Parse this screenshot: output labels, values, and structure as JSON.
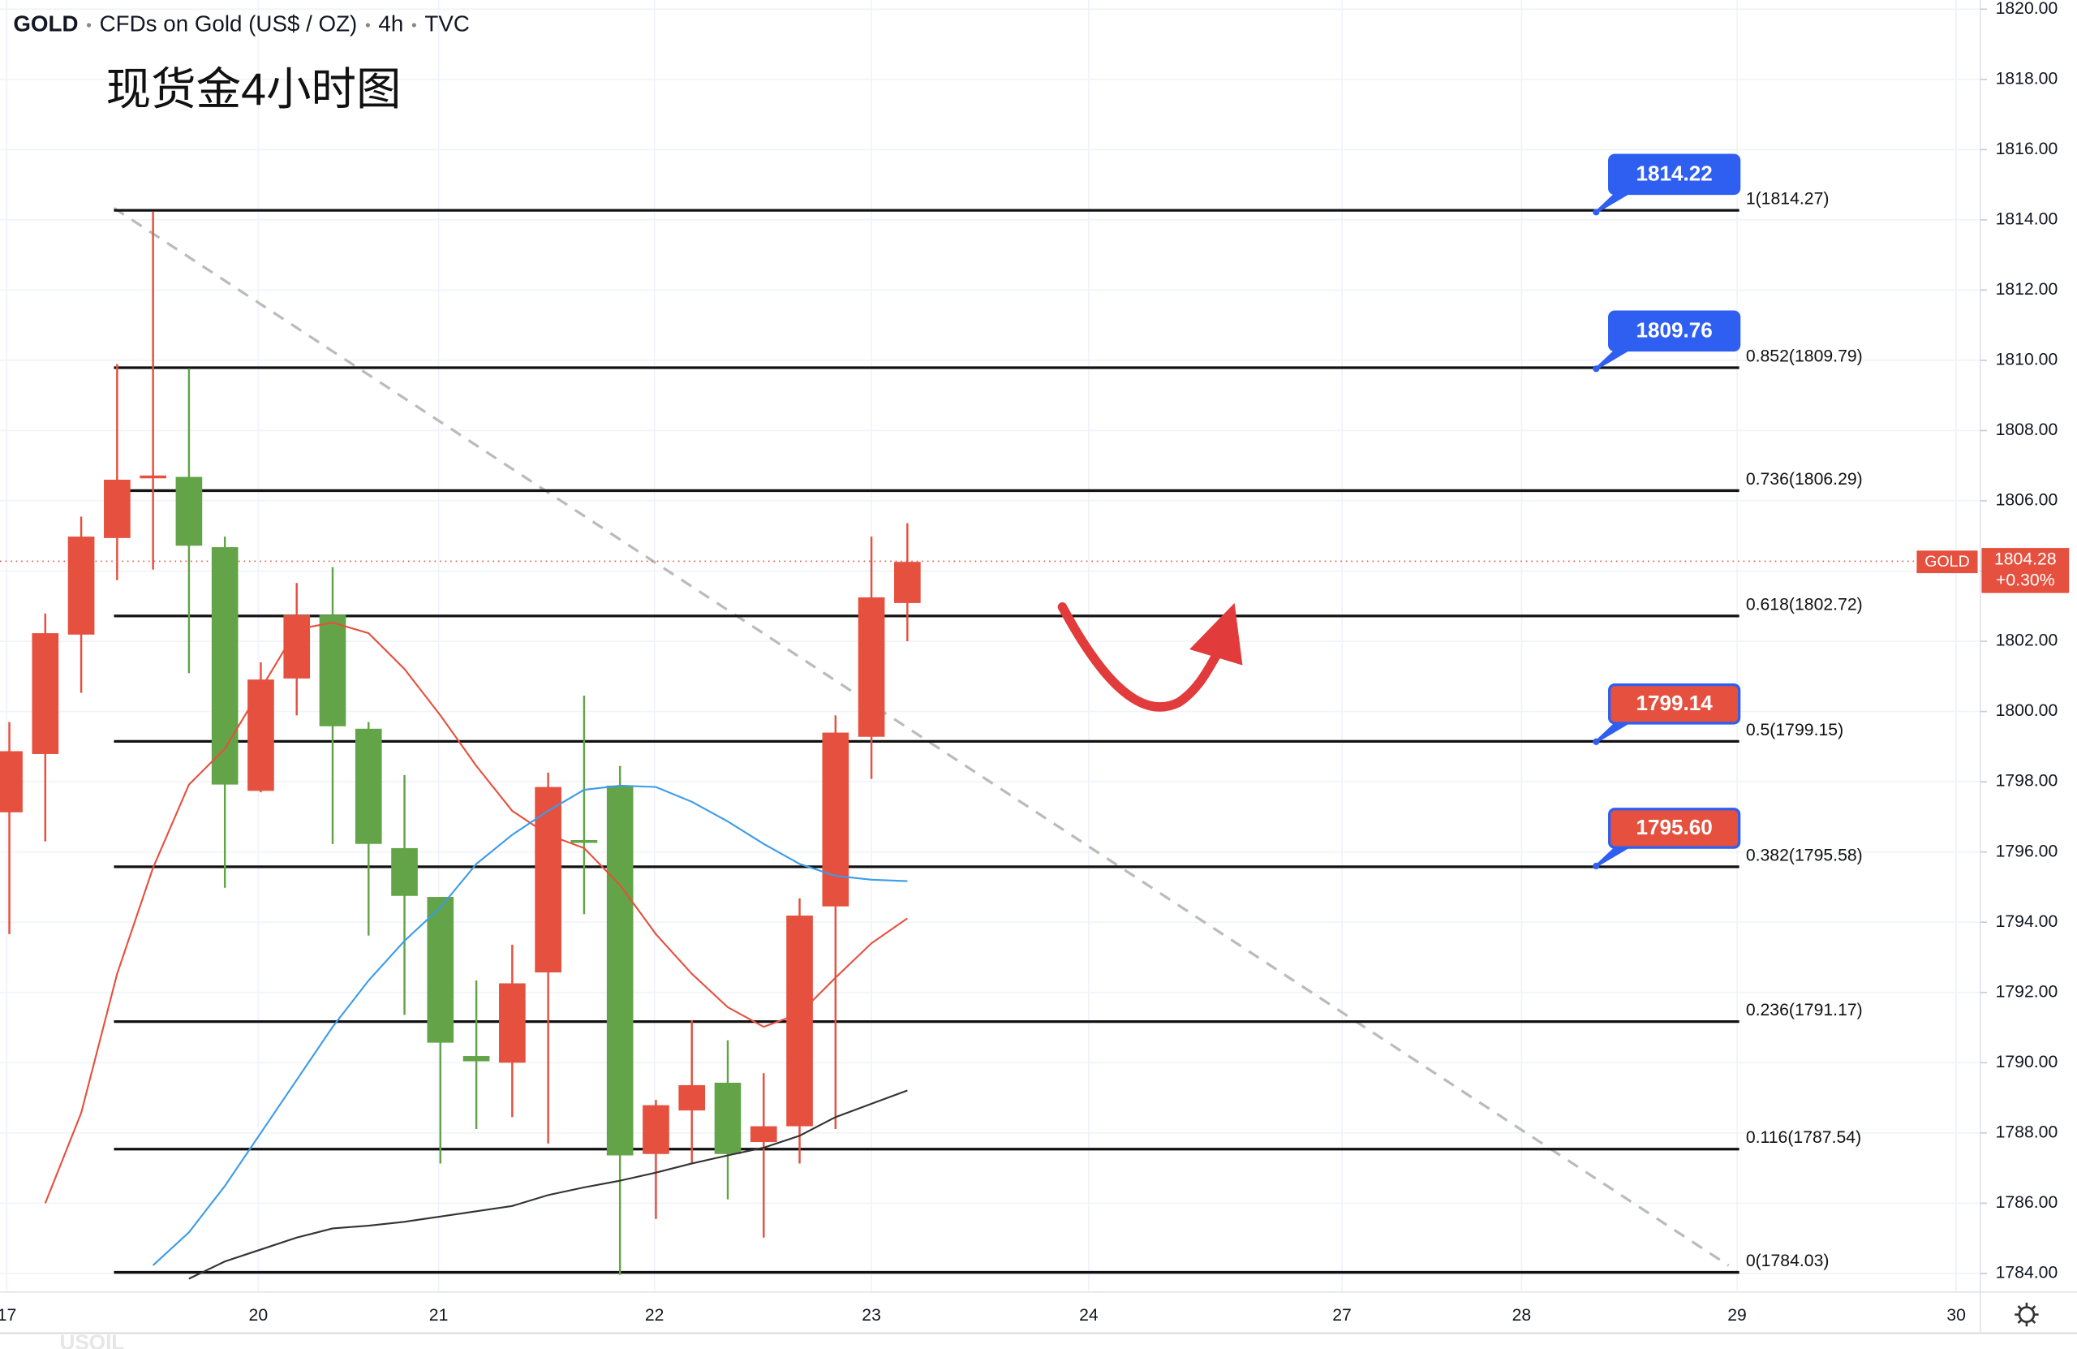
{
  "chart_data": {
    "type": "candlestick",
    "header": [
      "GOLD",
      "CFDs on Gold (US$ / OZ)",
      "4h",
      "TVC"
    ],
    "title": "现货金4小时图",
    "watermark": "USOIL",
    "x": [
      0,
      1,
      2,
      3,
      4,
      5,
      6,
      7,
      8,
      9,
      10,
      11,
      12,
      13,
      14,
      15,
      16,
      17,
      18,
      19,
      20,
      21,
      22,
      23,
      24,
      25
    ],
    "open": [
      1797.13,
      1798.79,
      1802.19,
      1804.94,
      1806.64,
      1806.68,
      1804.68,
      1797.74,
      1800.94,
      1802.75,
      1799.51,
      1796.11,
      1794.72,
      1790.19,
      1790.0,
      1792.57,
      1796.34,
      1797.89,
      1787.4,
      1788.64,
      1789.43,
      1787.74,
      1788.19,
      1794.45,
      1799.28,
      1803.09
    ],
    "high": [
      1799.7,
      1802.79,
      1805.55,
      1809.89,
      1814.23,
      1809.77,
      1804.98,
      1801.4,
      1803.66,
      1804.11,
      1799.7,
      1798.19,
      1794.72,
      1792.34,
      1793.36,
      1798.26,
      1800.45,
      1798.45,
      1788.94,
      1791.21,
      1790.64,
      1789.7,
      1794.68,
      1799.89,
      1804.98,
      1805.36
    ],
    "low": [
      1793.66,
      1796.3,
      1800.53,
      1803.74,
      1804.04,
      1801.09,
      1794.98,
      1797.7,
      1799.89,
      1796.23,
      1793.62,
      1791.36,
      1787.13,
      1788.11,
      1788.45,
      1787.7,
      1794.23,
      1783.96,
      1785.55,
      1787.13,
      1786.11,
      1785.02,
      1787.13,
      1788.11,
      1798.08,
      1802.0
    ],
    "close": [
      1798.87,
      1802.23,
      1804.98,
      1806.6,
      1806.72,
      1804.72,
      1797.92,
      1800.91,
      1802.75,
      1799.58,
      1796.23,
      1794.75,
      1790.57,
      1790.04,
      1792.26,
      1797.85,
      1796.26,
      1787.36,
      1788.79,
      1789.36,
      1787.4,
      1788.19,
      1794.19,
      1799.4,
      1803.25,
      1804.26
    ],
    "up_color": "#e5503f",
    "down_color": "#62a447",
    "series": [
      {
        "color": "#e5503f",
        "values": [
          null,
          1786.0,
          1788.57,
          1792.53,
          1795.55,
          1797.92,
          1798.94,
          1800.64,
          1802.34,
          1802.53,
          1802.23,
          1801.21,
          1799.89,
          1798.45,
          1797.17,
          1796.49,
          1796.11,
          1795.06,
          1793.66,
          1792.53,
          1791.58,
          1791.02,
          1791.4,
          1792.42,
          1793.4,
          1794.11
        ]
      },
      {
        "color": "#3d9be9",
        "values": [
          null,
          null,
          null,
          null,
          1784.23,
          1785.17,
          1786.49,
          1788.0,
          1789.51,
          1791.02,
          1792.34,
          1793.47,
          1794.42,
          1795.66,
          1796.49,
          1797.17,
          1797.77,
          1797.89,
          1797.85,
          1797.43,
          1796.87,
          1796.23,
          1795.66,
          1795.32,
          1795.21,
          1795.17
        ]
      },
      {
        "color": "#333333",
        "values": [
          null,
          null,
          null,
          null,
          null,
          1783.85,
          1784.34,
          1784.68,
          1785.02,
          1785.28,
          1785.36,
          1785.47,
          1785.62,
          1785.77,
          1785.92,
          1786.23,
          1786.45,
          1786.64,
          1786.87,
          1787.13,
          1787.36,
          1787.58,
          1787.92,
          1788.45,
          1788.83,
          1789.21
        ]
      }
    ],
    "xlim": [
      -0.26,
      54.87
    ],
    "xticks": [
      {
        "value": -0.07,
        "label": "17"
      },
      {
        "value": 6.93,
        "label": "20"
      },
      {
        "value": 11.95,
        "label": "21"
      },
      {
        "value": 17.96,
        "label": "22"
      },
      {
        "value": 24.0,
        "label": "23"
      },
      {
        "value": 30.05,
        "label": "24"
      },
      {
        "value": 37.1,
        "label": "27"
      },
      {
        "value": 42.1,
        "label": "28"
      },
      {
        "value": 48.1,
        "label": "29"
      },
      {
        "value": 54.2,
        "label": "30"
      }
    ],
    "ylim": [
      1783.47,
      1820.26
    ],
    "yticks": [
      {
        "value": 1784,
        "label": "1784.00"
      },
      {
        "value": 1786,
        "label": "1786.00"
      },
      {
        "value": 1788,
        "label": "1788.00"
      },
      {
        "value": 1790,
        "label": "1790.00"
      },
      {
        "value": 1792,
        "label": "1792.00"
      },
      {
        "value": 1794,
        "label": "1794.00"
      },
      {
        "value": 1796,
        "label": "1796.00"
      },
      {
        "value": 1798,
        "label": "1798.00"
      },
      {
        "value": 1800,
        "label": "1800.00"
      },
      {
        "value": 1802,
        "label": "1802.00"
      },
      {
        "value": 1804,
        "label": "1804.00"
      },
      {
        "value": 1806,
        "label": "1806.00"
      },
      {
        "value": 1808,
        "label": "1808.00"
      },
      {
        "value": 1810,
        "label": "1810.00"
      },
      {
        "value": 1812,
        "label": "1812.00"
      },
      {
        "value": 1814,
        "label": "1814.00"
      },
      {
        "value": 1816,
        "label": "1816.00"
      },
      {
        "value": 1818,
        "label": "1818.00"
      },
      {
        "value": 1820,
        "label": "1820.00"
      }
    ],
    "grid": true,
    "fib_levels": [
      {
        "value": 1814.27,
        "label": "1(1814.27)"
      },
      {
        "value": 1809.79,
        "label": "0.852(1809.79)"
      },
      {
        "value": 1806.29,
        "label": "0.736(1806.29)"
      },
      {
        "value": 1802.72,
        "label": "0.618(1802.72)"
      },
      {
        "value": 1799.15,
        "label": "0.5(1799.15)"
      },
      {
        "value": 1795.58,
        "label": "0.382(1795.58)"
      },
      {
        "value": 1791.17,
        "label": "0.236(1791.17)"
      },
      {
        "value": 1787.54,
        "label": "0.116(1787.54)"
      },
      {
        "value": 1784.03,
        "label": "0(1784.03)"
      }
    ],
    "price_tags": {
      "values": [
        1814.22,
        1809.76,
        1799.14,
        1795.6
      ],
      "value_labels": [
        "1814.22",
        "1809.76",
        "1799.14",
        "1795.60"
      ],
      "colors": [
        "#2f5ff0",
        "#2f5ff0",
        "#e5503f",
        "#e5503f"
      ]
    },
    "last_price": {
      "symbol": "GOLD",
      "value": 1804.28,
      "label": "1804.28",
      "change": "+0.30%",
      "color": "#e5503f"
    }
  }
}
